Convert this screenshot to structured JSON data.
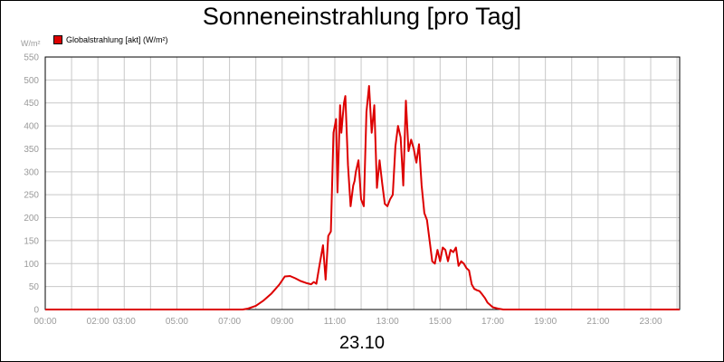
{
  "chart_data": {
    "type": "line",
    "title": "Sonneneinstrahlung [pro Tag]",
    "unit_label": "W/m²",
    "xlabel": "23.10",
    "ylabel": "",
    "ylim": [
      0,
      550
    ],
    "yticks": [
      0,
      50,
      100,
      150,
      200,
      250,
      300,
      350,
      400,
      450,
      500,
      550
    ],
    "xlim": [
      0,
      24.1
    ],
    "xticks": [
      {
        "t": 0,
        "label": "00:00"
      },
      {
        "t": 2,
        "label": "02:00"
      },
      {
        "t": 3,
        "label": "03:00"
      },
      {
        "t": 5,
        "label": "05:00"
      },
      {
        "t": 7,
        "label": "07:00"
      },
      {
        "t": 9,
        "label": "09:00"
      },
      {
        "t": 11,
        "label": "11:00"
      },
      {
        "t": 13,
        "label": "13:00"
      },
      {
        "t": 15,
        "label": "15:00"
      },
      {
        "t": 17,
        "label": "17:00"
      },
      {
        "t": 19,
        "label": "19:00"
      },
      {
        "t": 21,
        "label": "21:00"
      },
      {
        "t": 23,
        "label": "23:00"
      }
    ],
    "grid": true,
    "legend_position": "top-left",
    "series": [
      {
        "name": "Globalstrahlung [akt] (W/m²)",
        "color": "#dd0000",
        "x": [
          0,
          7.5,
          7.7,
          8.0,
          8.3,
          8.6,
          8.9,
          9.1,
          9.3,
          9.5,
          9.7,
          9.9,
          10.1,
          10.2,
          10.3,
          10.4,
          10.55,
          10.65,
          10.75,
          10.85,
          10.95,
          11.05,
          11.1,
          11.2,
          11.25,
          11.3,
          11.35,
          11.4,
          11.5,
          11.6,
          11.7,
          11.75,
          11.8,
          11.9,
          12.0,
          12.1,
          12.2,
          12.3,
          12.4,
          12.5,
          12.6,
          12.7,
          12.8,
          12.9,
          13.0,
          13.1,
          13.2,
          13.3,
          13.4,
          13.5,
          13.6,
          13.7,
          13.8,
          13.9,
          14.0,
          14.1,
          14.2,
          14.3,
          14.4,
          14.5,
          14.6,
          14.7,
          14.8,
          14.9,
          15.0,
          15.1,
          15.2,
          15.3,
          15.4,
          15.5,
          15.6,
          15.7,
          15.8,
          15.9,
          16.0,
          16.1,
          16.2,
          16.3,
          16.4,
          16.5,
          16.6,
          16.7,
          16.8,
          17.0,
          17.2,
          17.4,
          17.6,
          17.8,
          18.0,
          18.2,
          18.4,
          18.6,
          19.0,
          24.1
        ],
        "values": [
          0,
          0,
          2,
          8,
          20,
          35,
          55,
          72,
          73,
          68,
          62,
          58,
          55,
          60,
          56,
          90,
          140,
          65,
          160,
          170,
          385,
          415,
          255,
          445,
          385,
          420,
          450,
          465,
          315,
          225,
          270,
          280,
          300,
          325,
          240,
          225,
          430,
          487,
          385,
          445,
          265,
          325,
          275,
          230,
          225,
          240,
          250,
          355,
          400,
          375,
          270,
          455,
          345,
          370,
          350,
          320,
          360,
          270,
          210,
          195,
          150,
          105,
          100,
          130,
          105,
          135,
          130,
          105,
          130,
          125,
          135,
          95,
          105,
          100,
          90,
          85,
          55,
          45,
          42,
          40,
          33,
          25,
          15,
          5,
          2,
          0,
          0,
          0,
          0,
          0,
          0,
          0,
          0,
          0
        ]
      }
    ]
  }
}
